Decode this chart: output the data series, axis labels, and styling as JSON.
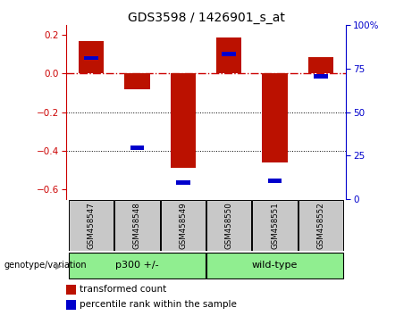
{
  "title": "GDS3598 / 1426901_s_at",
  "samples": [
    "GSM458547",
    "GSM458548",
    "GSM458549",
    "GSM458550",
    "GSM458551",
    "GSM458552"
  ],
  "red_values": [
    0.17,
    -0.08,
    -0.49,
    0.185,
    -0.46,
    0.085
  ],
  "blue_values": [
    0.08,
    -0.385,
    -0.565,
    0.1,
    -0.555,
    -0.015
  ],
  "ylim": [
    -0.65,
    0.25
  ],
  "yticks_left": [
    -0.6,
    -0.4,
    -0.2,
    0.0,
    0.2
  ],
  "yticks_right": [
    0,
    25,
    50,
    75,
    100
  ],
  "group_colors": [
    "#90EE90",
    "#90EE90"
  ],
  "group_labels": [
    "p300 +/-",
    "wild-type"
  ],
  "group_boundaries": [
    0,
    3,
    6
  ],
  "bar_width": 0.55,
  "red_color": "#BB1100",
  "blue_color": "#0000CC",
  "zero_line_color": "#CC0000",
  "dotted_line_color": "black",
  "bg_color": "white",
  "sample_bg": "#C8C8C8",
  "legend_red_label": "transformed count",
  "legend_blue_label": "percentile rank within the sample",
  "right_axis_color": "#0000CC",
  "left_axis_color": "#CC0000"
}
